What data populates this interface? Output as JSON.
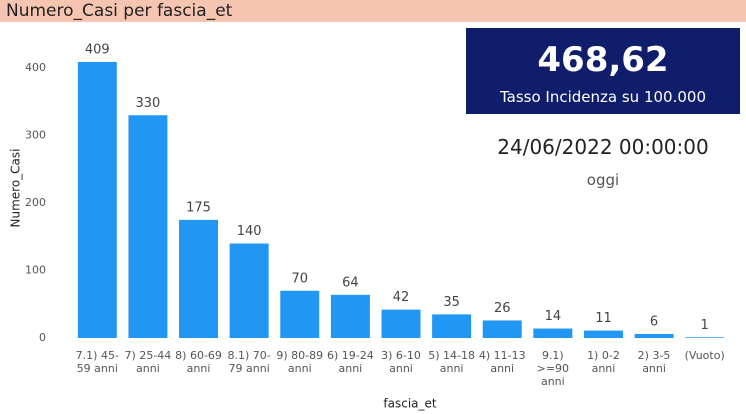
{
  "chart_data": {
    "type": "bar",
    "title": "Numero_Casi per fascia_et",
    "x_label": "fascia_et",
    "y_label": "Numero_Casi",
    "categories": [
      "7.1) 45-59 anni",
      "7) 25-44 anni",
      "8) 60-69 anni",
      "8.1) 70-79 anni",
      "9) 80-89 anni",
      "6) 19-24 anni",
      "3) 6-10 anni",
      "5) 14-18 anni",
      "4) 11-13 anni",
      "9.1) >=90 anni",
      "1) 0-2 anni",
      "2) 3-5 anni",
      "(Vuoto)"
    ],
    "values": [
      409,
      330,
      175,
      140,
      70,
      64,
      42,
      35,
      26,
      14,
      11,
      6,
      1
    ],
    "color": "#2196f3",
    "ylim": [
      0,
      420
    ],
    "yticks": [
      0,
      100,
      200,
      300,
      400
    ],
    "grid": false
  },
  "kpi": {
    "value": "468,62",
    "label": "Tasso Incidenza su 100.000"
  },
  "date_card": {
    "value": "24/06/2022 00:00:00",
    "label": "oggi"
  }
}
